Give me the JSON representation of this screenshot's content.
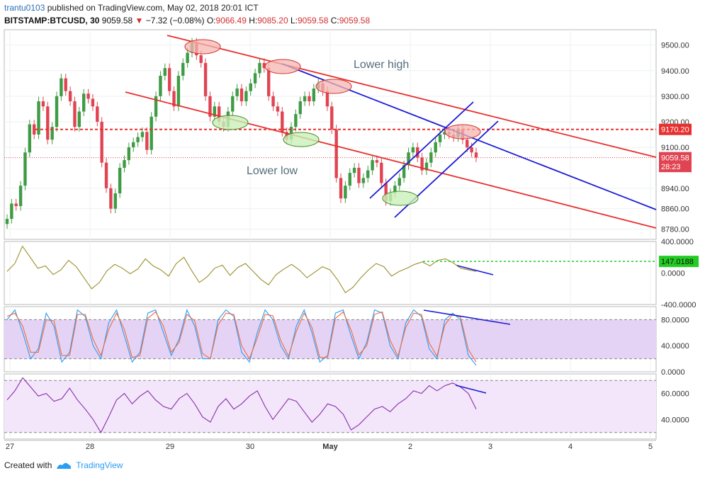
{
  "header": {
    "user": "trantu0103",
    "published_text": "published on TradingView.com, May 02, 2018 20:01 ICT",
    "symbol": "BITSTAMP:BTCUSD, 30",
    "last": "9059.58",
    "change": "−7.32 (−0.08%)",
    "o_label": "O:",
    "o": "9066.49",
    "h_label": "H:",
    "h": "9085.20",
    "l_label": "L:",
    "l": "9059.58",
    "c_label": "C:",
    "c": "9059.58"
  },
  "footer": {
    "created_with": "Created with",
    "brand": "TradingView"
  },
  "colors": {
    "candle_up": "#3f9b45",
    "candle_down": "#e04452",
    "channel": "#e82f2f",
    "trend_blue": "#1b1bd6",
    "osc_line": "#9a8f2b",
    "rsi_line": "#8a2fa6",
    "stoch_k": "#2a9df4",
    "stoch_d": "#f06b3d",
    "stoch_band": "#e5d3f5"
  },
  "chart_data": [
    {
      "type": "candlestick",
      "title": "BITSTAMP:BTCUSD, 30",
      "x_tick_labels": [
        "27",
        "28",
        "29",
        "30",
        "May",
        "2",
        "3",
        "4",
        "5"
      ],
      "y_ticks": [
        8780,
        8860,
        8940,
        9100,
        9200,
        9300,
        9400,
        9500
      ],
      "y_tick_labels": [
        "8780.00",
        "8860.00",
        "8940.00",
        "9100.00",
        "9200.00",
        "9300.00",
        "9400.00",
        "9500.00"
      ],
      "ylim": [
        8740,
        9560
      ],
      "price_labels": [
        {
          "label": "9170.20",
          "value": 9170.2,
          "color": "#e82f2f"
        },
        {
          "label": "9059.58",
          "value": 9059.58,
          "color": "#e04452"
        },
        {
          "label": "28:23",
          "value": 9025,
          "color": "#e04452"
        }
      ],
      "annotations": [
        "Lower high",
        "Lower low"
      ],
      "horizontal_line": 9170.2,
      "last_price": 9059.58,
      "series": [
        {
          "values": [
            8820,
            8880,
            8870,
            8950,
            9080,
            9190,
            9150,
            9280,
            9260,
            9130,
            9180,
            9300,
            9370,
            9320,
            9280,
            9180,
            9240,
            9310,
            9290,
            9260,
            9200,
            9040,
            8940,
            8860,
            8920,
            9020,
            9050,
            9100,
            9120,
            9140,
            9160,
            9090,
            9220,
            9300,
            9380,
            9410,
            9320,
            9260,
            9380,
            9430,
            9470,
            9510,
            9460,
            9430,
            9300,
            9220,
            9260,
            9200,
            9180,
            9240,
            9300,
            9330,
            9280,
            9320,
            9350,
            9390,
            9430,
            9410,
            9300,
            9260,
            9240,
            9160,
            9130,
            9180,
            9230,
            9280,
            9300,
            9280,
            9330,
            9350,
            9320,
            9260,
            9170,
            8980,
            8900,
            8950,
            9000,
            9020,
            8960,
            8980,
            9010,
            9050,
            9040,
            8960,
            8890,
            8920,
            8950,
            8980,
            9030,
            9080,
            9100,
            9060,
            9010,
            9040,
            9080,
            9120,
            9150,
            9160,
            9150,
            9140,
            9170,
            9130,
            9100,
            9080,
            9060
          ]
        }
      ]
    },
    {
      "type": "line",
      "y_tick_labels": [
        "400.0000",
        "0.0000",
        "-400.0000"
      ],
      "ylim": [
        -400,
        400
      ],
      "price_labels": [
        {
          "label": "147.0188",
          "value": 147.0188,
          "color": "#22cc22"
        }
      ],
      "series": [
        {
          "values": [
            20,
            120,
            340,
            200,
            60,
            90,
            -20,
            40,
            160,
            80,
            -60,
            -200,
            -120,
            30,
            110,
            60,
            -10,
            50,
            180,
            90,
            40,
            -40,
            120,
            200,
            30,
            -120,
            -50,
            60,
            100,
            -30,
            70,
            120,
            20,
            -80,
            -150,
            -20,
            50,
            110,
            40,
            -60,
            10,
            80,
            40,
            -90,
            -250,
            -180,
            -60,
            40,
            120,
            80,
            -40,
            20,
            60,
            110,
            140,
            90,
            160,
            180,
            130,
            60,
            40,
            20
          ]
        }
      ]
    },
    {
      "type": "line",
      "y_tick_labels": [
        "80.0000",
        "40.0000",
        "0.0000"
      ],
      "ylim": [
        0,
        100
      ],
      "series": [
        {
          "values": [
            80,
            95,
            60,
            20,
            35,
            90,
            70,
            15,
            30,
            95,
            85,
            40,
            20,
            75,
            95,
            55,
            15,
            30,
            90,
            95,
            60,
            25,
            50,
            95,
            70,
            20,
            20,
            80,
            95,
            85,
            30,
            15,
            60,
            95,
            80,
            40,
            20,
            70,
            95,
            60,
            15,
            25,
            90,
            95,
            55,
            20,
            45,
            95,
            90,
            40,
            20,
            75,
            95,
            85,
            35,
            20,
            80,
            90,
            80,
            25,
            10
          ]
        },
        {
          "values": [
            85,
            90,
            70,
            30,
            30,
            80,
            78,
            25,
            25,
            88,
            88,
            50,
            25,
            65,
            90,
            65,
            22,
            25,
            82,
            92,
            70,
            30,
            45,
            88,
            78,
            28,
            20,
            72,
            90,
            88,
            40,
            20,
            52,
            88,
            86,
            48,
            24,
            62,
            90,
            68,
            22,
            22,
            82,
            92,
            64,
            26,
            40,
            88,
            92,
            48,
            24,
            68,
            90,
            88,
            44,
            24,
            72,
            88,
            84,
            34,
            15
          ]
        }
      ]
    },
    {
      "type": "line",
      "y_tick_labels": [
        "60.0000",
        "40.0000"
      ],
      "ylim": [
        25,
        75
      ],
      "series": [
        {
          "values": [
            55,
            62,
            72,
            65,
            58,
            60,
            54,
            56,
            64,
            55,
            48,
            40,
            30,
            42,
            55,
            60,
            52,
            58,
            62,
            55,
            50,
            48,
            56,
            60,
            52,
            42,
            38,
            50,
            56,
            48,
            52,
            58,
            62,
            50,
            40,
            48,
            56,
            54,
            46,
            38,
            44,
            52,
            50,
            44,
            32,
            36,
            42,
            48,
            50,
            46,
            52,
            56,
            62,
            60,
            66,
            62,
            66,
            68,
            65,
            60,
            48
          ]
        }
      ]
    }
  ]
}
